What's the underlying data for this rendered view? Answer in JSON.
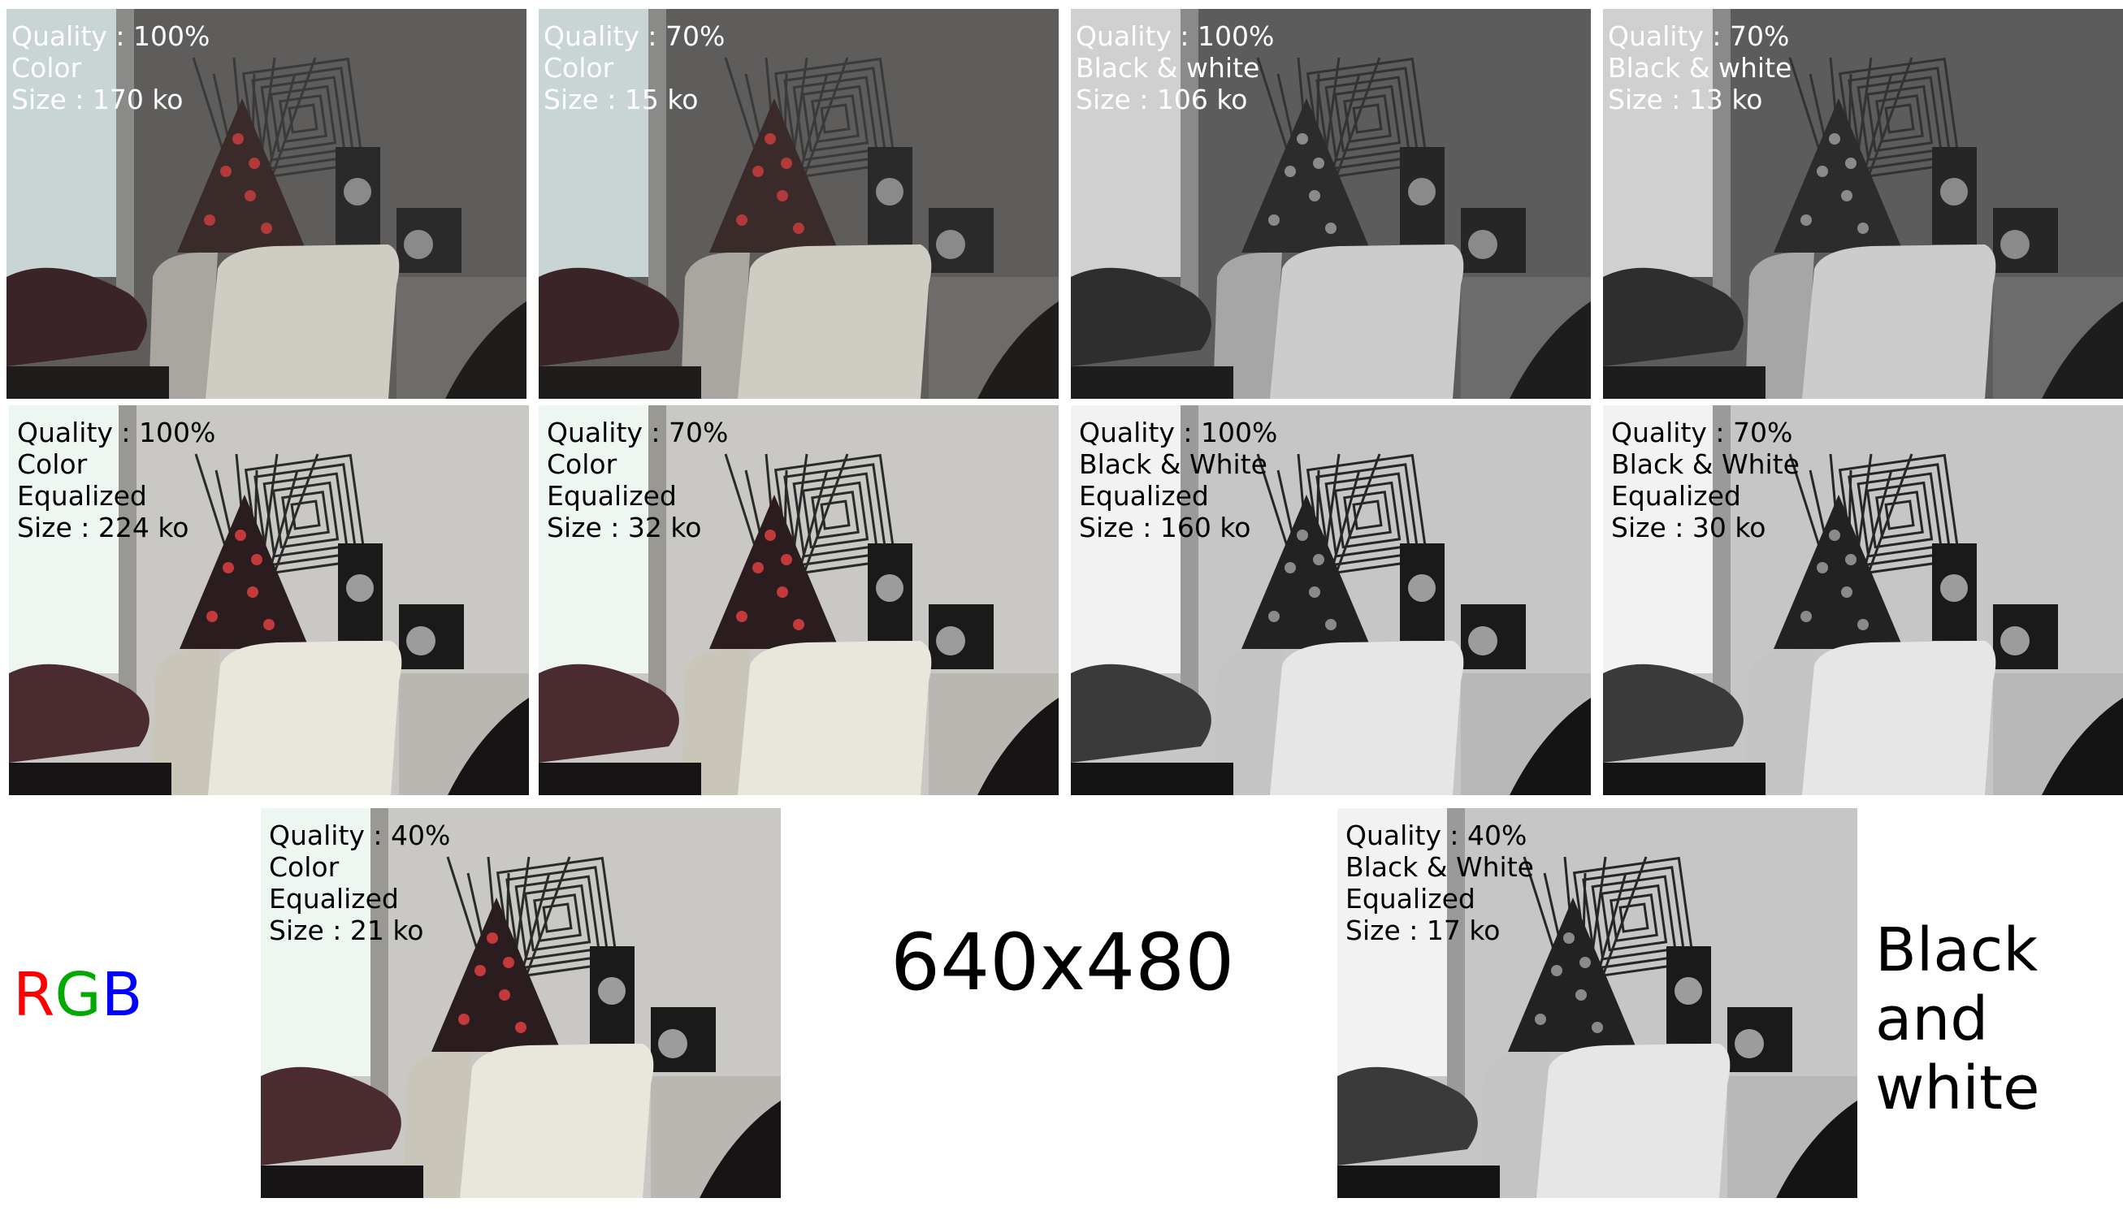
{
  "tiles": [
    {
      "id": "t1",
      "quality": "Quality : 100%",
      "mode": "Color",
      "size": "Size : 170 ko",
      "variant": "color"
    },
    {
      "id": "t2",
      "quality": "Quality : 70%",
      "mode": "Color",
      "size": "Size : 15 ko",
      "variant": "color"
    },
    {
      "id": "t3",
      "quality": "Quality : 100%",
      "mode": "Black & white",
      "size": "Size : 106 ko",
      "variant": "bw"
    },
    {
      "id": "t4",
      "quality": "Quality : 70%",
      "mode": "Black & white",
      "size": "Size : 13 ko",
      "variant": "bw"
    },
    {
      "id": "t5",
      "quality": "Quality : 100%",
      "mode": "Color",
      "processing": "Equalized",
      "size": "Size : 224 ko",
      "variant": "color-eq"
    },
    {
      "id": "t6",
      "quality": "Quality : 70%",
      "mode": "Color",
      "processing": "Equalized",
      "size": "Size : 32 ko",
      "variant": "color-eq"
    },
    {
      "id": "t7",
      "quality": "Quality : 100%",
      "mode": "Black & White",
      "processing": "Equalized",
      "size": "Size : 160 ko",
      "variant": "bw-eq"
    },
    {
      "id": "t8",
      "quality": "Quality : 70%",
      "mode": "Black & White",
      "processing": "Equalized",
      "size": "Size : 30 ko",
      "variant": "bw-eq"
    },
    {
      "id": "t9",
      "quality": "Quality : 40%",
      "mode": "Color",
      "processing": "Equalized",
      "size": "Size : 21 ko",
      "variant": "color-eq"
    },
    {
      "id": "t10",
      "quality": "Quality : 40%",
      "mode": "Black & White",
      "processing": "Equalized",
      "size": "Size : 17 ko",
      "variant": "bw-eq"
    }
  ],
  "labels": {
    "resolution": "640x480",
    "rgb": {
      "r": "R",
      "g": "G",
      "b": "B"
    },
    "bw_line1": "Black",
    "bw_line2": "and",
    "bw_line3": "white"
  },
  "colors": {
    "rgb_r": "#ff0000",
    "rgb_g": "#00aa00",
    "rgb_b": "#0000ff"
  }
}
